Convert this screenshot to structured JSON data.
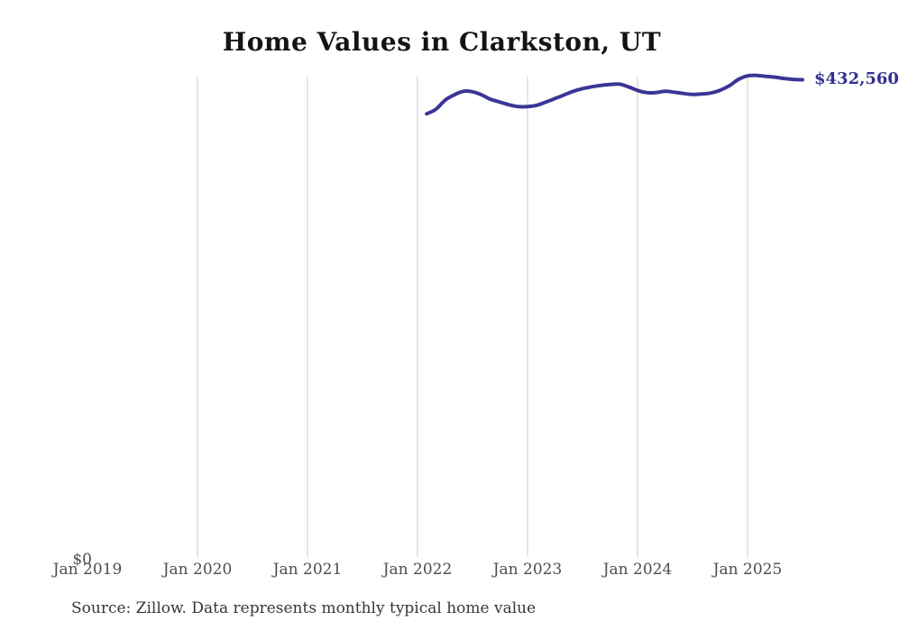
{
  "title": "Home Values in Clarkston, UT",
  "source_note": "Source: Zillow. Data represents monthly typical home value",
  "axes": {
    "y_zero_label": "$0",
    "x_tick_labels": [
      "Jan 2019",
      "Jan 2020",
      "Jan 2021",
      "Jan 2022",
      "Jan 2023",
      "Jan 2024",
      "Jan 2025"
    ]
  },
  "colors": {
    "line": "#3b3596",
    "end_label": "#33308f",
    "gridline": "#cccccc",
    "axis_text": "#4d4d4d",
    "title_text": "#141414",
    "source_text": "#363636"
  },
  "chart_data": {
    "type": "line",
    "title": "Home Values in Clarkston, UT",
    "xlabel": "",
    "ylabel": "",
    "ylim": [
      0,
      437000
    ],
    "grid": "vertical-only",
    "legend": "none",
    "x_tick_labels": [
      "Jan 2019",
      "Jan 2020",
      "Jan 2021",
      "Jan 2022",
      "Jan 2023",
      "Jan 2024",
      "Jan 2025"
    ],
    "end_label": "$432,560",
    "end_value": 432560,
    "series": [
      {
        "name": "Monthly typical home value",
        "points": [
          {
            "month": "Feb 2022",
            "value": 401600
          },
          {
            "month": "Mar 2022",
            "value": 405700
          },
          {
            "month": "Apr 2022",
            "value": 413900
          },
          {
            "month": "May 2022",
            "value": 418800
          },
          {
            "month": "Jun 2022",
            "value": 422100
          },
          {
            "month": "Jul 2022",
            "value": 421700
          },
          {
            "month": "Aug 2022",
            "value": 418800
          },
          {
            "month": "Sep 2022",
            "value": 414700
          },
          {
            "month": "Oct 2022",
            "value": 412300
          },
          {
            "month": "Nov 2022",
            "value": 409800
          },
          {
            "month": "Dec 2022",
            "value": 408200
          },
          {
            "month": "Jan 2023",
            "value": 408200
          },
          {
            "month": "Feb 2023",
            "value": 409400
          },
          {
            "month": "Mar 2023",
            "value": 412300
          },
          {
            "month": "Apr 2023",
            "value": 415500
          },
          {
            "month": "May 2023",
            "value": 418800
          },
          {
            "month": "Jun 2023",
            "value": 422100
          },
          {
            "month": "Jul 2023",
            "value": 424500
          },
          {
            "month": "Aug 2023",
            "value": 426200
          },
          {
            "month": "Sep 2023",
            "value": 427400
          },
          {
            "month": "Oct 2023",
            "value": 428200
          },
          {
            "month": "Nov 2023",
            "value": 428600
          },
          {
            "month": "Dec 2023",
            "value": 426200
          },
          {
            "month": "Jan 2024",
            "value": 422900
          },
          {
            "month": "Feb 2024",
            "value": 420900
          },
          {
            "month": "Mar 2024",
            "value": 420900
          },
          {
            "month": "Apr 2024",
            "value": 422100
          },
          {
            "month": "May 2024",
            "value": 421300
          },
          {
            "month": "Jun 2024",
            "value": 420100
          },
          {
            "month": "Jul 2024",
            "value": 419200
          },
          {
            "month": "Aug 2024",
            "value": 419600
          },
          {
            "month": "Sep 2024",
            "value": 420500
          },
          {
            "month": "Oct 2024",
            "value": 423000
          },
          {
            "month": "Nov 2024",
            "value": 427100
          },
          {
            "month": "Dec 2024",
            "value": 432800
          },
          {
            "month": "Jan 2025",
            "value": 436100
          },
          {
            "month": "Feb 2025",
            "value": 436500
          },
          {
            "month": "Mar 2025",
            "value": 435700
          },
          {
            "month": "Apr 2025",
            "value": 434900
          },
          {
            "month": "May 2025",
            "value": 433700
          },
          {
            "month": "Jun 2025",
            "value": 432900
          },
          {
            "month": "Jul 2025",
            "value": 432560
          }
        ]
      }
    ]
  }
}
